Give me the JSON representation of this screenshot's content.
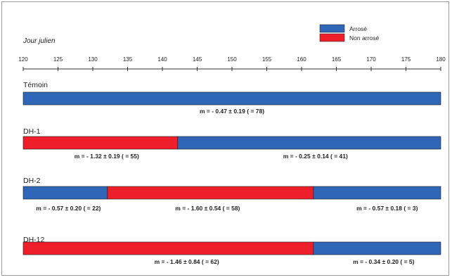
{
  "colors": {
    "arrose": "#2f66b8",
    "non_arrose": "#ee1f2a",
    "bar_edge": "#1a1a1a",
    "text": "#222222"
  },
  "chart_data": {
    "type": "bar",
    "orientation": "horizontal-stacked-timeline",
    "axis_title": "Jour julien",
    "xlim": [
      120,
      180
    ],
    "ticks": [
      120,
      125,
      130,
      135,
      140,
      145,
      150,
      155,
      160,
      165,
      170,
      175,
      180
    ],
    "legend": [
      {
        "key": "arrose",
        "label": "Arrosé",
        "color": "#2f66b8"
      },
      {
        "key": "non_arrose",
        "label": "Non arrosé",
        "color": "#ee1f2a"
      }
    ],
    "legend_position": "top-right",
    "rows": [
      {
        "label": "Témoin",
        "segments": [
          {
            "state": "arrose",
            "start": 120,
            "end": 180
          }
        ],
        "annotations": [
          {
            "text": "m = - 0.47 ± 0.19    ( = 78)",
            "center": 150
          }
        ]
      },
      {
        "label": "DH-1",
        "segments": [
          {
            "state": "non_arrose",
            "start": 120,
            "end": 142.2
          },
          {
            "state": "arrose",
            "start": 142.2,
            "end": 180
          }
        ],
        "annotations": [
          {
            "text": "m = - 1.32 ± 0.19    ( = 55)",
            "center": 132
          },
          {
            "text": "m = - 0.25 ± 0.14    ( = 41)",
            "center": 162
          }
        ]
      },
      {
        "label": "DH-2",
        "segments": [
          {
            "state": "arrose",
            "start": 120,
            "end": 132.1
          },
          {
            "state": "non_arrose",
            "start": 132.1,
            "end": 161.7
          },
          {
            "state": "arrose",
            "start": 161.7,
            "end": 180
          }
        ],
        "annotations": [
          {
            "text": "m = - 0.57 ± 0.20    ( = 22)",
            "center": 126.5
          },
          {
            "text": "m = - 1.60 ± 0.54    ( = 58)",
            "center": 146.5
          },
          {
            "text": "m = - 0.57 ± 0.18    ( = 3)",
            "center": 172.3
          }
        ]
      },
      {
        "label": "DH-12",
        "segments": [
          {
            "state": "non_arrose",
            "start": 120,
            "end": 161.7
          },
          {
            "state": "arrose",
            "start": 161.7,
            "end": 180
          }
        ],
        "annotations": [
          {
            "text": "m = - 1.46 ± 0.84    ( = 62)",
            "center": 143.5
          },
          {
            "text": "m = - 0.34 ± 0.20    ( = 5)",
            "center": 171.8
          }
        ]
      }
    ]
  }
}
